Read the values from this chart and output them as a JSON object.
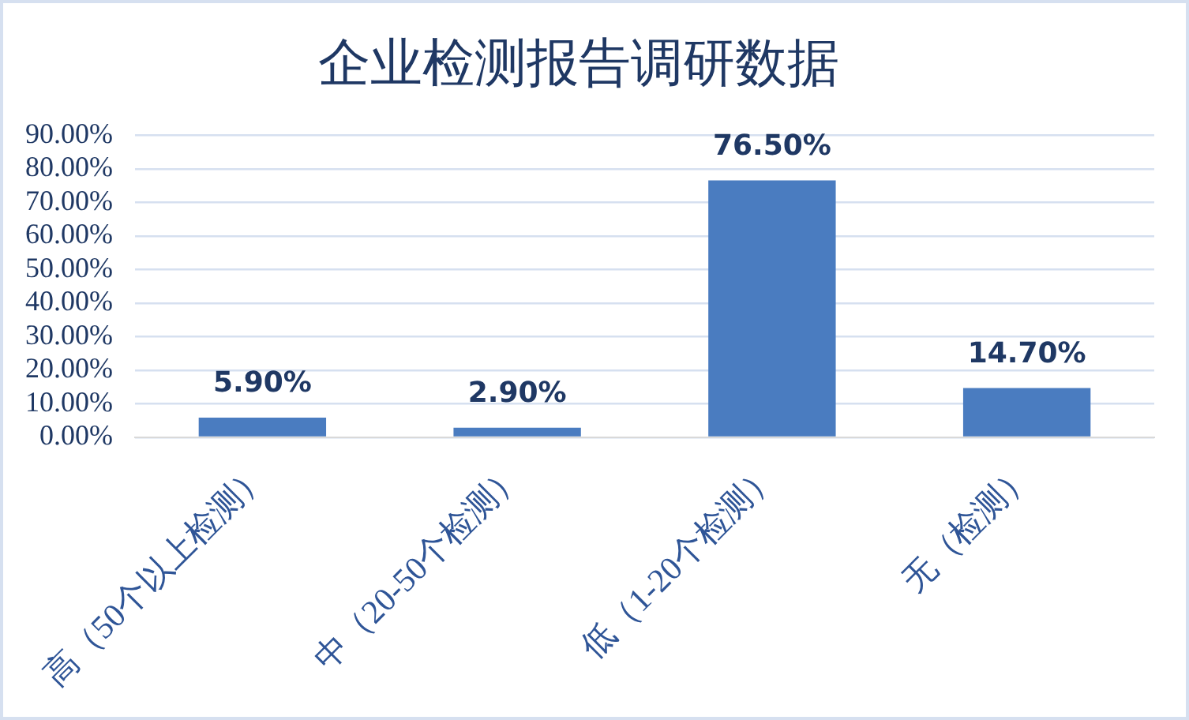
{
  "chart_data": {
    "type": "bar",
    "title": "企业检测报告调研数据",
    "categories": [
      "高（50个以上检测）",
      "中（20-50个检测）",
      "低（1-20个检测）",
      "无（检测）"
    ],
    "values": [
      5.9,
      2.9,
      76.5,
      14.7
    ],
    "color": "#4a7cc0",
    "value_labels": [
      "5.90%",
      "2.90%",
      "76.50%",
      "14.70%"
    ],
    "ylim": [
      0,
      90
    ],
    "yticks": [
      {
        "value": 0,
        "label": "0.00%"
      },
      {
        "value": 10,
        "label": "10.00%"
      },
      {
        "value": 20,
        "label": "20.00%"
      },
      {
        "value": 30,
        "label": "30.00%"
      },
      {
        "value": 40,
        "label": "40.00%"
      },
      {
        "value": 50,
        "label": "50.00%"
      },
      {
        "value": 60,
        "label": "60.00%"
      },
      {
        "value": 70,
        "label": "70.00%"
      },
      {
        "value": 80,
        "label": "80.00%"
      },
      {
        "value": 90,
        "label": "90.00%"
      }
    ],
    "grid": "y",
    "legend": false
  }
}
